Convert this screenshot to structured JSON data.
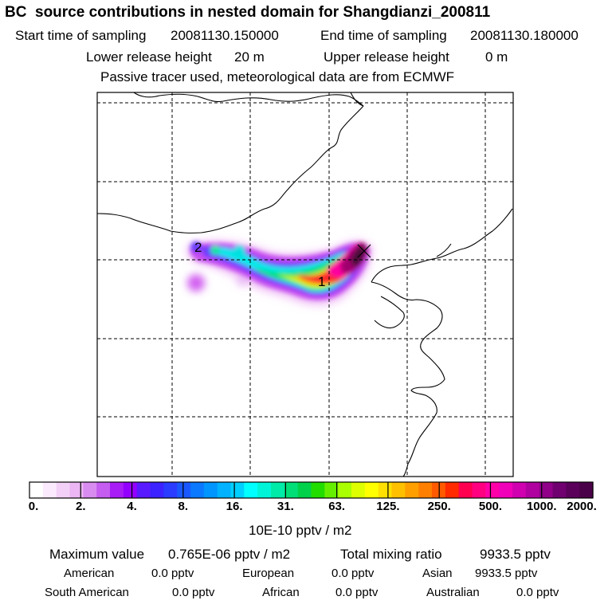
{
  "title": "BC  source contributions in nested domain for Shangdianzi_200811",
  "header": {
    "start_label": "Start time of sampling",
    "start_value": "20081130.150000",
    "end_label": "End time of sampling",
    "end_value": "20081130.180000",
    "lower_label": "Lower release height",
    "lower_value": "20 m",
    "upper_label": "Upper release height",
    "upper_value": "0 m",
    "note": "Passive tracer used, meteorological data are from ECMWF"
  },
  "map": {
    "markers": [
      {
        "label": "2"
      },
      {
        "label": "1"
      }
    ],
    "receptor_symbol": "x",
    "plume_colors_low_to_high": [
      "#f7e0f9",
      "#d070f0",
      "#9b00ff",
      "#3a2bff",
      "#1e9bff",
      "#00ffee",
      "#00e070",
      "#ccff00",
      "#ffb000",
      "#ff2a2a",
      "#ff00a0",
      "#a0006e",
      "#4a0a3a"
    ]
  },
  "colorbar": {
    "tick_labels": [
      "0.",
      "2.",
      "4.",
      "8.",
      "16.",
      "31.",
      "63.",
      "125.",
      "250.",
      "500.",
      "1000.",
      "2000."
    ],
    "unit": "10E-10 pptv / m2",
    "segments": [
      "#ffffff",
      "#fbeafd",
      "#f3d0f7",
      "#ebb6f3",
      "#d98cf0",
      "#c45df0",
      "#a81cf5",
      "#9400ff",
      "#5a1aff",
      "#3b22ff",
      "#2a3cff",
      "#1a58ff",
      "#0a78ff",
      "#0095ff",
      "#00b2ff",
      "#00d0ff",
      "#00ffff",
      "#00f5d8",
      "#00eaa8",
      "#00de78",
      "#00d14a",
      "#22dd00",
      "#66ee00",
      "#aaff00",
      "#ddff00",
      "#ffff00",
      "#ffe000",
      "#ffc000",
      "#ffa000",
      "#ff8000",
      "#ff5a00",
      "#ff2a00",
      "#ff0050",
      "#ff0080",
      "#ff00a8",
      "#f000b8",
      "#d000b0",
      "#b000a0",
      "#900088",
      "#700070",
      "#5a005a",
      "#4a0048"
    ]
  },
  "footer": {
    "max_label": "Maximum value",
    "max_value": "0.765E-06 pptv / m2",
    "total_label": "Total mixing ratio",
    "total_value": "9933.5 pptv",
    "regions": [
      {
        "name": "American",
        "value": "0.0 pptv"
      },
      {
        "name": "European",
        "value": "0.0 pptv"
      },
      {
        "name": "Asian",
        "value": "9933.5 pptv"
      },
      {
        "name": "South American",
        "value": "0.0 pptv"
      },
      {
        "name": "African",
        "value": "0.0 pptv"
      },
      {
        "name": "Australian",
        "value": "0.0 pptv"
      }
    ]
  }
}
